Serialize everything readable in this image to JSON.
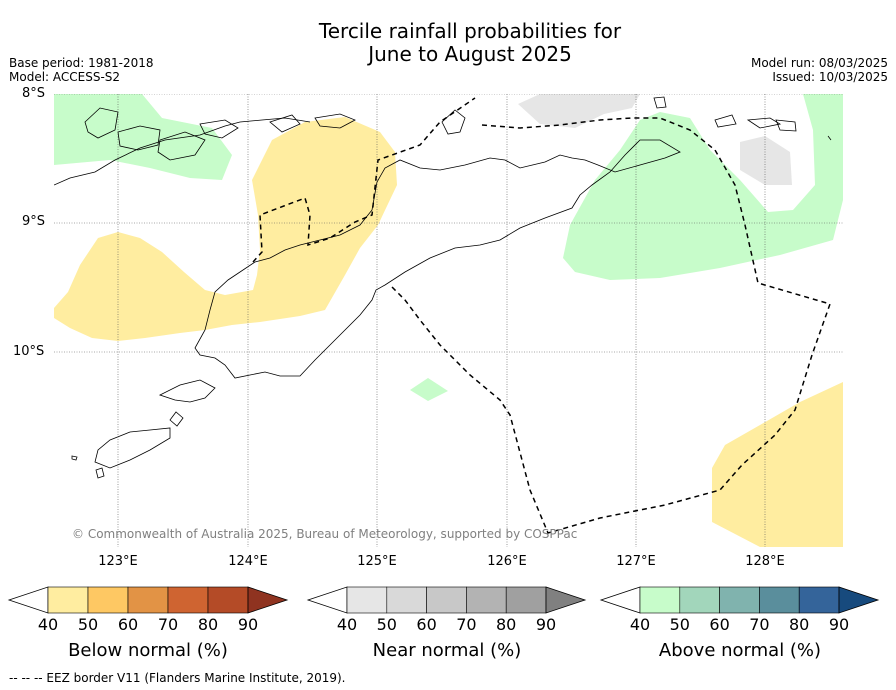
{
  "title_line1": "Tercile rainfall probabilities for",
  "title_line2": "June to August 2025",
  "meta": {
    "base_period": "Base period: 1981-2018",
    "model": "Model: ACCESS-S2",
    "model_run": "Model run: 08/03/2025",
    "issued": "Issued: 10/03/2025"
  },
  "map": {
    "lat_labels": [
      "8°S",
      "9°S",
      "10°S"
    ],
    "lon_labels": [
      "123°E",
      "124°E",
      "125°E",
      "126°E",
      "127°E",
      "128°E"
    ],
    "copyright": "© Commonwealth of Australia 2025, Bureau of Meteorology, supported by COSPPac",
    "colors": {
      "below_50": "#ffeda0",
      "near_50": "#e6e6e6",
      "above_50": "#c7fcca"
    }
  },
  "colorbars": {
    "below": {
      "title": "Below normal (%)",
      "ticks": [
        "40",
        "50",
        "60",
        "70",
        "80",
        "90"
      ],
      "colors": [
        "#ffeda0",
        "#fec863",
        "#e29345",
        "#cf6431",
        "#b44b27",
        "#8f3320"
      ]
    },
    "near": {
      "title": "Near normal (%)",
      "ticks": [
        "40",
        "50",
        "60",
        "70",
        "80",
        "90"
      ],
      "colors": [
        "#e6e6e6",
        "#d9d9d9",
        "#c8c8c8",
        "#b3b3b3",
        "#a0a0a0",
        "#808080"
      ]
    },
    "above": {
      "title": "Above normal (%)",
      "ticks": [
        "40",
        "50",
        "60",
        "70",
        "80",
        "90"
      ],
      "colors": [
        "#c7fcca",
        "#a2d6bb",
        "#80b3ae",
        "#5a8e9c",
        "#34649a",
        "#174a7d"
      ]
    }
  },
  "footnote": "--  --  -- EEZ border V11 (Flanders Marine Institute, 2019)."
}
